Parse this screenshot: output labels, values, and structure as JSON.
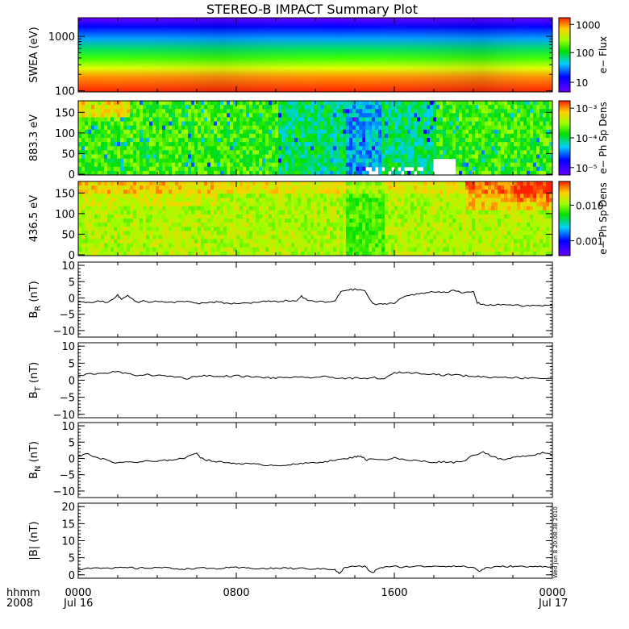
{
  "title": "STEREO-B IMPACT Summary Plot",
  "footer": {
    "hhmm": "hhmm",
    "year": "2008",
    "start_date": "Jul 16",
    "end_date": "Jul 17"
  },
  "time_ticks": [
    "0000",
    "0800",
    "1600",
    "0000"
  ],
  "side_stamp": "Wed Jun 8 20:08:38 2010",
  "colors": {
    "line": "#000000",
    "background": "#ffffff"
  },
  "chart_data": [
    {
      "type": "heatmap",
      "name": "swea",
      "ylabel": "SWEA (eV)",
      "yscale": "log",
      "yticks": [
        "1000",
        "100"
      ],
      "ylim": [
        95,
        2200
      ],
      "colorbar_label": "e− Flux",
      "colorbar_scale": "log",
      "colorbar_ticks": [
        "1000",
        "100",
        "10"
      ],
      "colorbar_range": [
        3,
        2000
      ],
      "description_of_values": "flux decreasing with energy; red near 100 eV, green ~300-600 eV, blue/purple above 1500 eV"
    },
    {
      "type": "heatmap",
      "name": "pad883",
      "ylabel": "883.3 eV",
      "ylim": [
        0,
        180
      ],
      "yticks": [
        "150",
        "100",
        "50",
        "0"
      ],
      "colorbar_label": "e− Ph Sp Dens",
      "colorbar_scale": "log",
      "colorbar_ticks": [
        "10⁻³",
        "10⁻⁴",
        "10⁻⁵"
      ],
      "colorbar_range": [
        5e-06,
        0.002
      ]
    },
    {
      "type": "heatmap",
      "name": "pad436",
      "ylabel": "436.5 eV",
      "ylim": [
        0,
        180
      ],
      "yticks": [
        "150",
        "100",
        "50",
        "0"
      ],
      "colorbar_label": "e− Ph Sp Dens",
      "colorbar_scale": "log",
      "colorbar_ticks": [
        "0.010",
        "0.001"
      ],
      "colorbar_range": [
        0.0003,
        0.03
      ]
    },
    {
      "type": "line",
      "name": "br",
      "ylabel": "B_R (nT)",
      "ylabel_main": "B",
      "ylabel_sub": "R",
      "ylabel_unit": "(nT)",
      "ylim": [
        -12,
        11
      ],
      "yticks": [
        "10",
        "5",
        "0",
        "−5",
        "−10"
      ],
      "x_hours": [
        0,
        0.5,
        1,
        1.5,
        2,
        2.2,
        2.5,
        3,
        3.3,
        3.6,
        4,
        4.5,
        5,
        5.5,
        6,
        6.5,
        7,
        7.5,
        8,
        8.5,
        9,
        9.5,
        10,
        10.5,
        11,
        11.3,
        11.6,
        12,
        12.5,
        13,
        13.3,
        13.6,
        14,
        14.5,
        14.9,
        15.2,
        15.5,
        16,
        16.5,
        17,
        17.5,
        18,
        18.5,
        19,
        19.5,
        20,
        20.2,
        20.5,
        21,
        21.5,
        22,
        22.5,
        23,
        23.5,
        24
      ],
      "values": [
        -1.2,
        -1.5,
        -1.0,
        -1.3,
        0.8,
        -0.5,
        1.0,
        -1.5,
        -0.8,
        -1.2,
        -1.0,
        -1.5,
        -1.2,
        -0.9,
        -1.8,
        -1.5,
        -1.3,
        -1.6,
        -1.8,
        -1.5,
        -1.4,
        -1.0,
        -1.2,
        -0.8,
        -1.0,
        0.5,
        -0.8,
        -1.0,
        -1.3,
        -1.0,
        2.0,
        2.5,
        2.6,
        2.3,
        -1.8,
        -2.0,
        -1.8,
        -1.5,
        0.5,
        1.0,
        1.5,
        2.0,
        1.8,
        2.2,
        1.5,
        2.0,
        -1.5,
        -2.0,
        -2.2,
        -2.0,
        -2.1,
        -2.5,
        -2.3,
        -2.4,
        -2.2
      ]
    },
    {
      "type": "line",
      "name": "bt",
      "ylabel": "B_T (nT)",
      "ylabel_main": "B",
      "ylabel_sub": "T",
      "ylabel_unit": "(nT)",
      "ylim": [
        -11,
        11
      ],
      "yticks": [
        "10",
        "5",
        "0",
        "−5",
        "−10"
      ],
      "x_hours": [
        0,
        0.5,
        1,
        1.5,
        2,
        2.5,
        3,
        3.5,
        4,
        4.5,
        5,
        5.5,
        6,
        6.5,
        7,
        7.5,
        8,
        8.5,
        9,
        9.5,
        10,
        10.5,
        11,
        11.5,
        12,
        12.5,
        13,
        13.5,
        14,
        14.5,
        15,
        15.5,
        16,
        16.5,
        17,
        17.5,
        18,
        18.5,
        19,
        19.5,
        20,
        20.5,
        21,
        21.5,
        22,
        22.5,
        23,
        23.5,
        24
      ],
      "values": [
        1.2,
        1.8,
        2.0,
        2.2,
        2.5,
        1.8,
        1.5,
        1.6,
        1.4,
        1.2,
        1.0,
        0.5,
        1.2,
        1.4,
        1.0,
        1.2,
        1.3,
        1.1,
        0.9,
        0.8,
        0.6,
        0.9,
        0.8,
        0.7,
        0.9,
        1.0,
        0.8,
        0.5,
        0.6,
        0.4,
        0.8,
        0.3,
        2.2,
        2.3,
        2.1,
        2.0,
        1.8,
        1.5,
        1.7,
        1.3,
        1.2,
        1.0,
        0.8,
        1.0,
        0.8,
        0.6,
        0.8,
        0.5,
        0.6
      ]
    },
    {
      "type": "line",
      "name": "bn",
      "ylabel": "B_N (nT)",
      "ylabel_main": "B",
      "ylabel_sub": "N",
      "ylabel_unit": "(nT)",
      "ylim": [
        -12,
        11
      ],
      "yticks": [
        "10",
        "5",
        "0",
        "−5",
        "−10"
      ],
      "x_hours": [
        0,
        0.5,
        1,
        1.5,
        2,
        2.5,
        3,
        3.5,
        4,
        4.5,
        5,
        5.5,
        6,
        6.2,
        6.5,
        7,
        7.5,
        8,
        8.5,
        9,
        9.5,
        10,
        10.5,
        11,
        11.5,
        12,
        12.5,
        13,
        13.5,
        14,
        14.3,
        14.6,
        15,
        15.5,
        16,
        16.5,
        17,
        17.5,
        18,
        18.5,
        19,
        19.5,
        20,
        20.5,
        21,
        21.5,
        22,
        22.5,
        23,
        23.5,
        24
      ],
      "values": [
        0.5,
        1.5,
        0.0,
        -0.5,
        -1.5,
        -1.0,
        -1.2,
        -0.8,
        -1.0,
        -0.5,
        -0.2,
        0.3,
        1.8,
        0.2,
        -0.5,
        -1.0,
        -1.3,
        -1.5,
        -1.6,
        -1.8,
        -2.0,
        -2.1,
        -2.0,
        -1.8,
        -1.5,
        -1.2,
        -1.0,
        -0.5,
        -0.2,
        0.5,
        0.8,
        -0.5,
        0.0,
        -0.5,
        0.2,
        -0.5,
        -0.6,
        -0.9,
        -1.2,
        -1.0,
        -1.2,
        -0.8,
        1.0,
        2.0,
        0.5,
        -0.5,
        0.2,
        0.8,
        1.0,
        1.8,
        1.2
      ]
    },
    {
      "type": "line",
      "name": "bmag",
      "ylabel": "|B| (nT)",
      "ylim": [
        -1,
        21
      ],
      "yticks": [
        "20",
        "15",
        "10",
        "5",
        "0"
      ],
      "x_hours": [
        0,
        0.5,
        1,
        1.5,
        2,
        2.5,
        3,
        3.5,
        4,
        4.5,
        5,
        5.5,
        6,
        6.5,
        7,
        7.5,
        8,
        8.5,
        9,
        9.5,
        10,
        10.5,
        11,
        11.5,
        12,
        12.5,
        13,
        13.2,
        13.5,
        14,
        14.5,
        14.9,
        15.2,
        15.5,
        16,
        16.5,
        17,
        17.5,
        18,
        18.5,
        19,
        19.5,
        20,
        20.3,
        20.6,
        21,
        21.5,
        22,
        22.5,
        23,
        23.5,
        24
      ],
      "values": [
        1.5,
        2.0,
        2.2,
        1.8,
        2.0,
        2.1,
        1.9,
        2.0,
        2.2,
        2.0,
        1.8,
        1.7,
        2.0,
        1.9,
        1.8,
        2.0,
        2.1,
        2.0,
        1.9,
        1.8,
        1.9,
        2.0,
        1.8,
        1.9,
        1.7,
        1.8,
        1.6,
        0.3,
        2.2,
        2.5,
        2.4,
        0.5,
        2.0,
        2.2,
        2.4,
        2.3,
        2.5,
        2.4,
        2.6,
        2.5,
        2.6,
        2.4,
        2.2,
        1.0,
        2.0,
        2.2,
        2.4,
        2.5,
        2.4,
        2.3,
        2.5,
        2.4
      ]
    }
  ]
}
